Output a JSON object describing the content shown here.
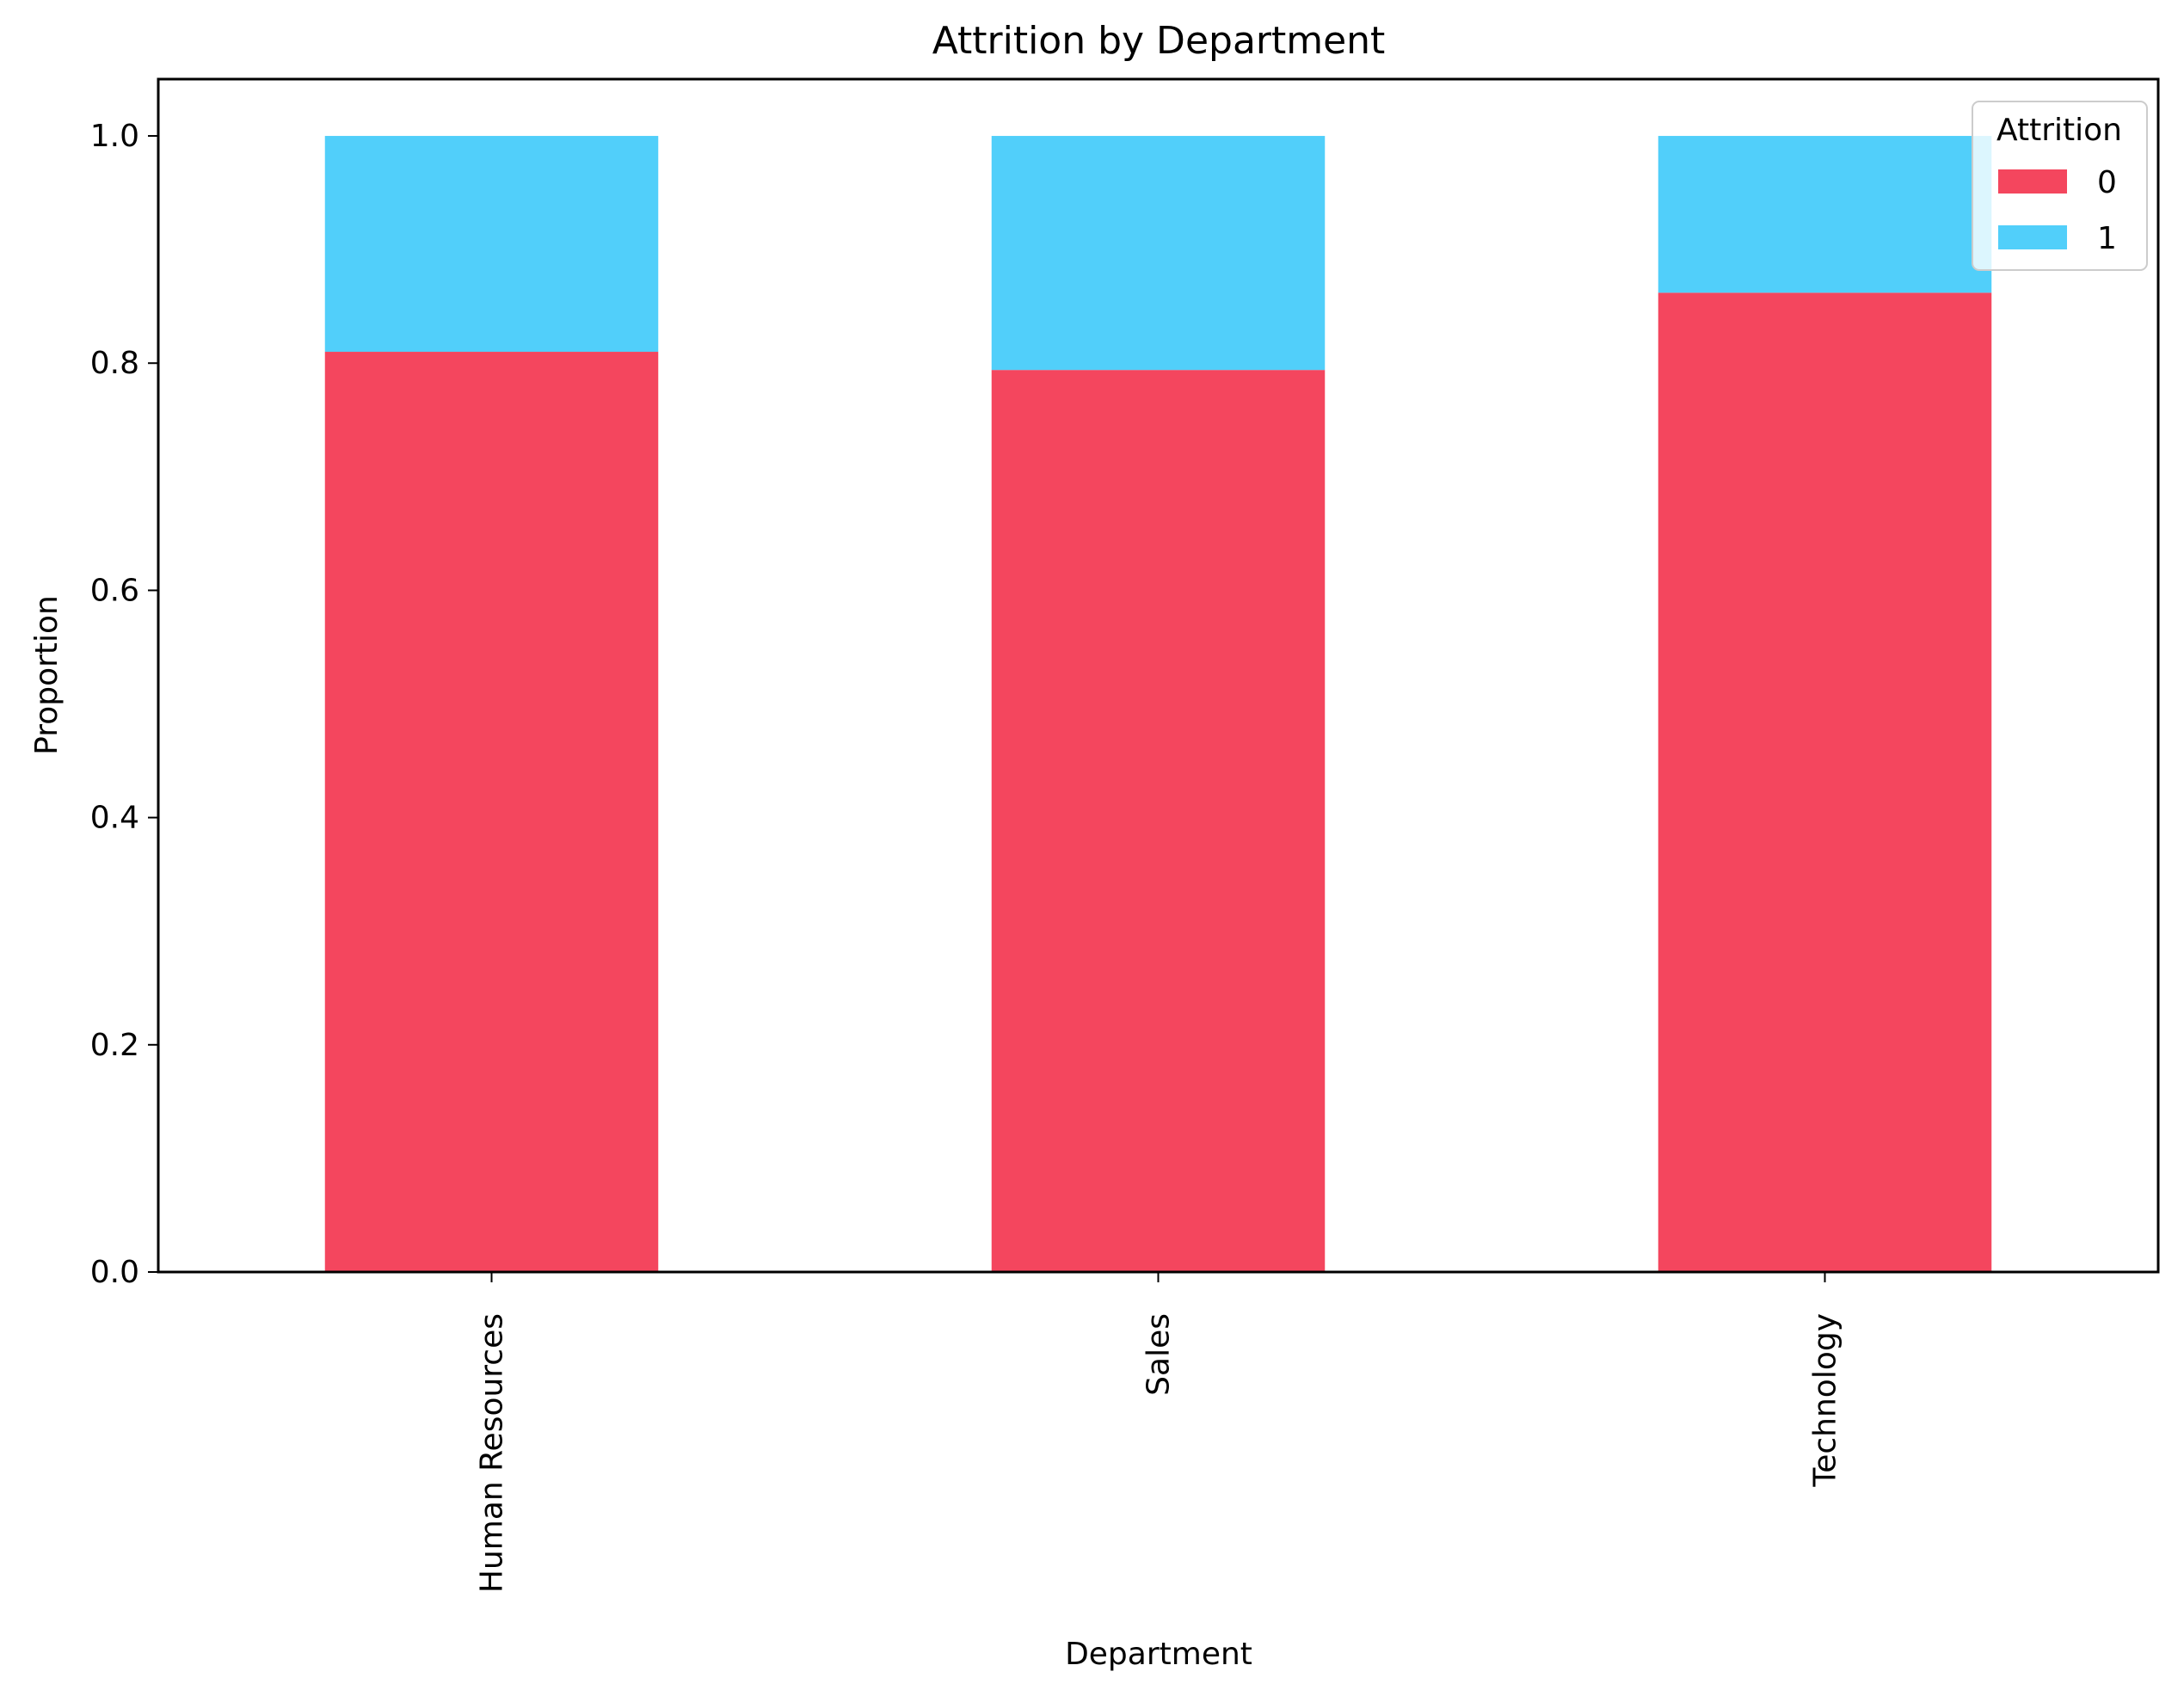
{
  "chart_data": {
    "type": "bar",
    "stacked": true,
    "title": "Attrition by Department",
    "xlabel": "Department",
    "ylabel": "Proportion",
    "categories": [
      "Human Resources",
      "Sales",
      "Technology"
    ],
    "series": [
      {
        "name": "0",
        "color": "#f4465e",
        "values": [
          0.81,
          0.794,
          0.862
        ]
      },
      {
        "name": "1",
        "color": "#51cffa",
        "values": [
          0.19,
          0.206,
          0.138
        ]
      }
    ],
    "ylim": [
      0,
      1.05
    ],
    "yticks": [
      "0.0",
      "0.2",
      "0.4",
      "0.6",
      "0.8",
      "1.0"
    ],
    "ytick_values": [
      0,
      0.2,
      0.4,
      0.6,
      0.8,
      1.0
    ],
    "grid": false,
    "legend": {
      "title": "Attrition",
      "position": "top-right"
    }
  }
}
